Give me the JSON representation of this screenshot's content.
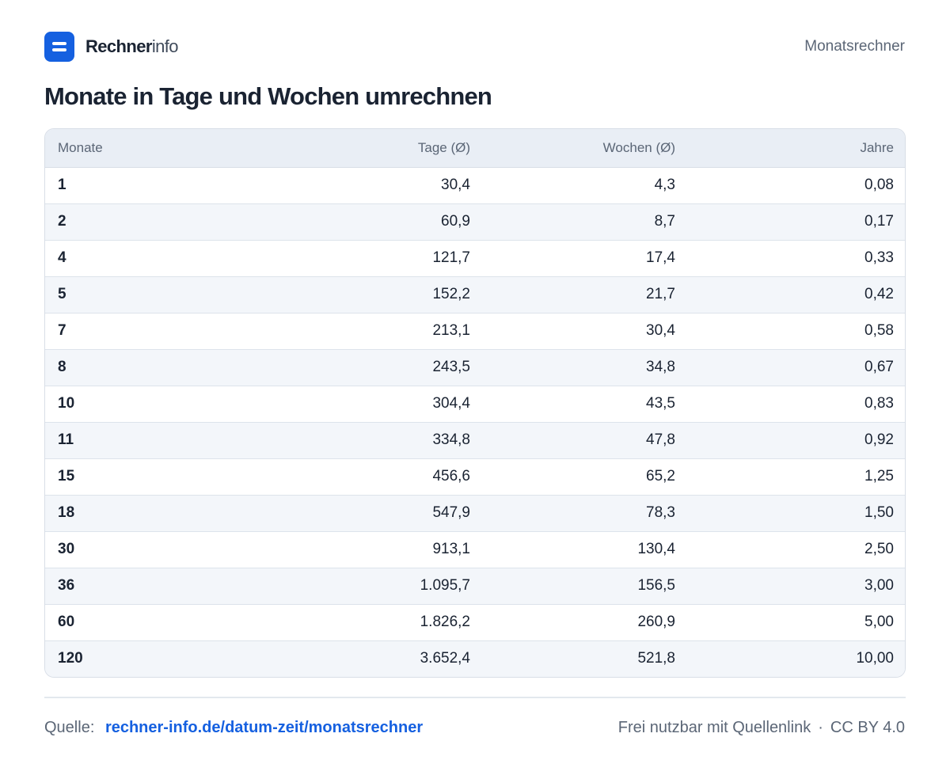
{
  "header": {
    "brand_bold": "Rechner",
    "brand_light": "info",
    "nav_link": "Monatsrechner"
  },
  "page": {
    "title": "Monate in Tage und Wochen umrechnen"
  },
  "table": {
    "columns": [
      "Monate",
      "Tage (Ø)",
      "Wochen (Ø)",
      "Jahre"
    ],
    "rows": [
      [
        "1",
        "30,4",
        "4,3",
        "0,08"
      ],
      [
        "2",
        "60,9",
        "8,7",
        "0,17"
      ],
      [
        "4",
        "121,7",
        "17,4",
        "0,33"
      ],
      [
        "5",
        "152,2",
        "21,7",
        "0,42"
      ],
      [
        "7",
        "213,1",
        "30,4",
        "0,58"
      ],
      [
        "8",
        "243,5",
        "34,8",
        "0,67"
      ],
      [
        "10",
        "304,4",
        "43,5",
        "0,83"
      ],
      [
        "11",
        "334,8",
        "47,8",
        "0,92"
      ],
      [
        "15",
        "456,6",
        "65,2",
        "1,25"
      ],
      [
        "18",
        "547,9",
        "78,3",
        "1,50"
      ],
      [
        "30",
        "913,1",
        "130,4",
        "2,50"
      ],
      [
        "36",
        "1.095,7",
        "156,5",
        "3,00"
      ],
      [
        "60",
        "1.826,2",
        "260,9",
        "5,00"
      ],
      [
        "120",
        "3.652,4",
        "521,8",
        "10,00"
      ]
    ]
  },
  "footer": {
    "source_label": "Quelle:",
    "source_link": "rechner-info.de/datum-zeit/monatsrechner",
    "license_text": "Frei nutzbar mit Quellenlink",
    "separator": "·",
    "license_name": "CC BY 4.0"
  },
  "colors": {
    "accent": "#1560e0",
    "text": "#1a2332",
    "muted": "#5b6676",
    "header_bg": "#e9eef5",
    "row_alt_bg": "#f3f6fa"
  },
  "icons": {
    "logo": "rechner-logo-icon"
  }
}
